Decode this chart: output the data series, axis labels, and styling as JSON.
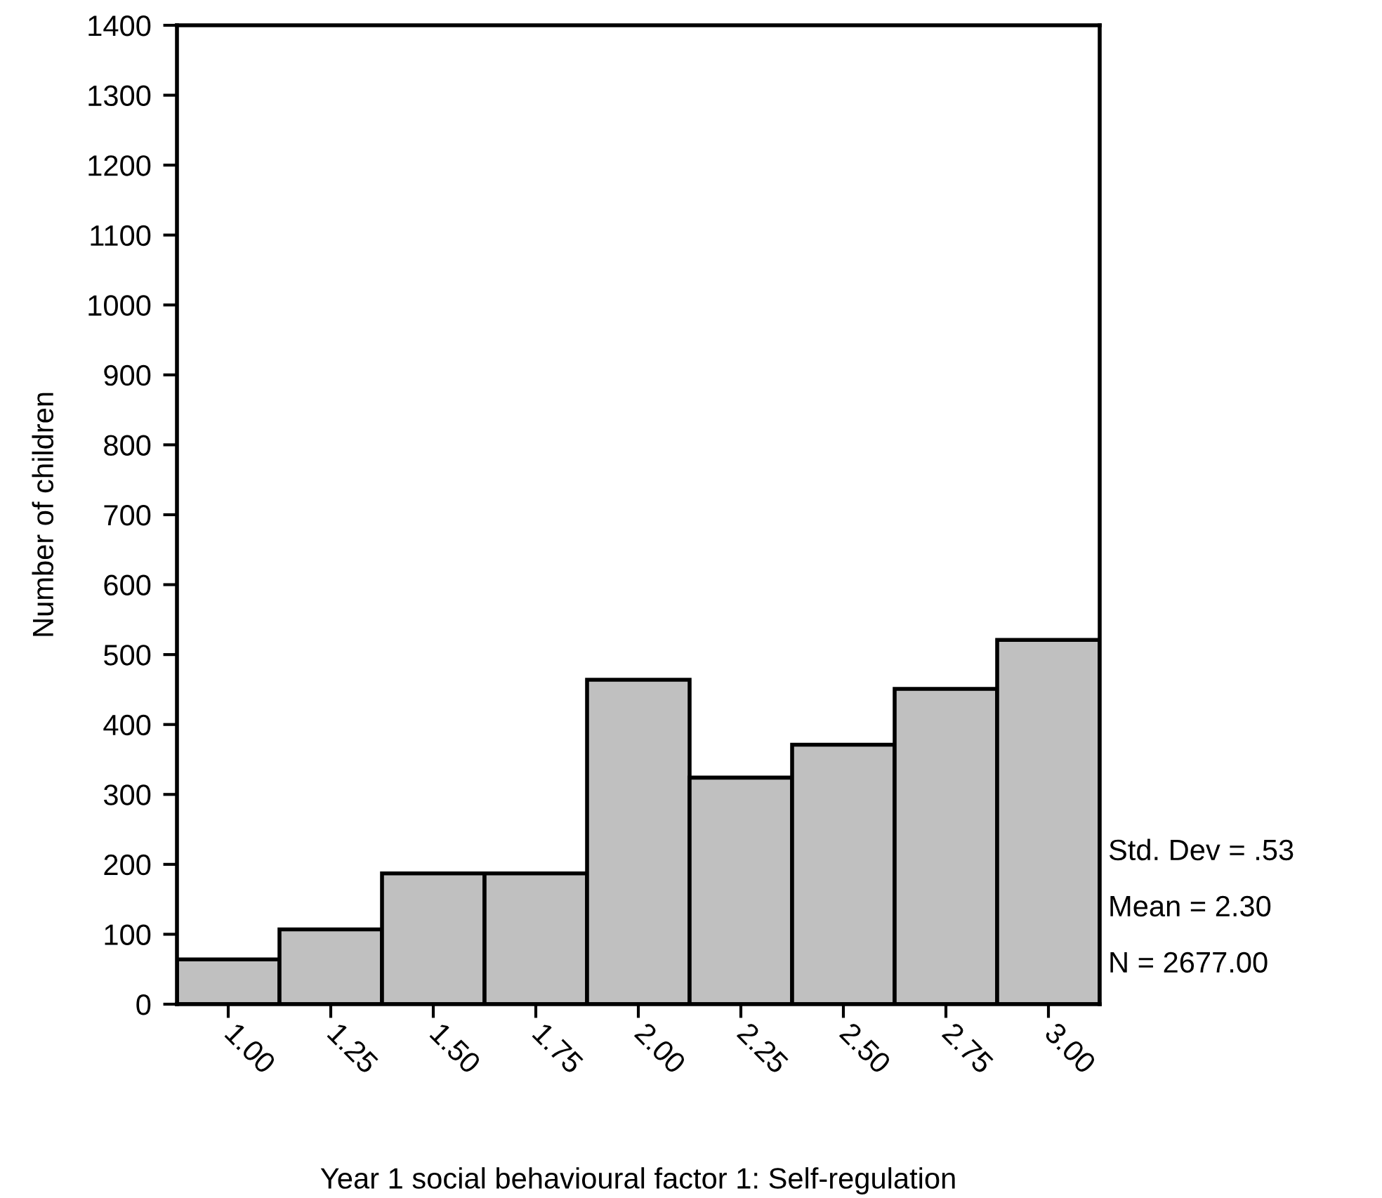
{
  "chart_data": {
    "type": "histogram",
    "xlabel": "Year 1 social behavioural factor 1: Self-regulation",
    "ylabel": "Number of children",
    "bins": [
      0.875,
      1.125,
      1.375,
      1.625,
      1.875,
      2.125,
      2.375,
      2.625,
      2.875,
      3.125
    ],
    "values": [
      64,
      107,
      187,
      187,
      464,
      324,
      371,
      451,
      521
    ],
    "color": "#c0c0c0",
    "xlim": [
      0.875,
      3.125
    ],
    "xticks": [
      {
        "value": 1.0,
        "label": "1.00"
      },
      {
        "value": 1.25,
        "label": "1.25"
      },
      {
        "value": 1.5,
        "label": "1.50"
      },
      {
        "value": 1.75,
        "label": "1.75"
      },
      {
        "value": 2.0,
        "label": "2.00"
      },
      {
        "value": 2.25,
        "label": "2.25"
      },
      {
        "value": 2.5,
        "label": "2.50"
      },
      {
        "value": 2.75,
        "label": "2.75"
      },
      {
        "value": 3.0,
        "label": "3.00"
      }
    ],
    "ylim": [
      0,
      1400
    ],
    "yticks": [
      0,
      100,
      200,
      300,
      400,
      500,
      600,
      700,
      800,
      900,
      1000,
      1100,
      1200,
      1300,
      1400
    ],
    "grid": false,
    "annotations": [
      "Std. Dev = .53",
      "Mean = 2.30",
      "N = 2677.00"
    ]
  }
}
